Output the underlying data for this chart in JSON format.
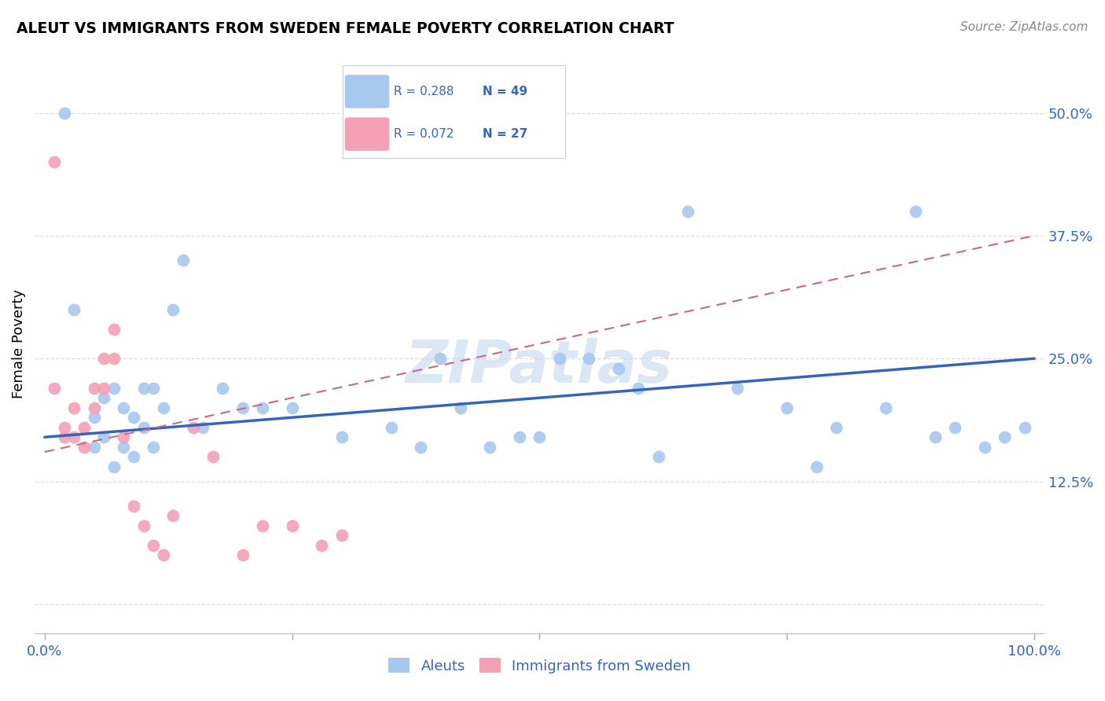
{
  "title": "ALEUT VS IMMIGRANTS FROM SWEDEN FEMALE POVERTY CORRELATION CHART",
  "source": "Source: ZipAtlas.com",
  "ylabel": "Female Poverty",
  "watermark": "ZIPatlas",
  "legend_blue_r": "R = 0.288",
  "legend_blue_n": "N = 49",
  "legend_pink_r": "R = 0.072",
  "legend_pink_n": "N = 27",
  "xlim": [
    -1,
    101
  ],
  "ylim": [
    -3,
    56
  ],
  "yticks": [
    0,
    12.5,
    25,
    37.5,
    50
  ],
  "xticks": [
    0,
    100
  ],
  "xtick_labels": [
    "0.0%",
    "100.0%"
  ],
  "ytick_labels": [
    "",
    "12.5%",
    "25.0%",
    "37.5%",
    "50.0%"
  ],
  "blue_color": "#A8C8F0",
  "pink_color": "#F4A0B5",
  "blue_line_color": "#3366BB",
  "pink_line_color": "#CC6688",
  "background_color": "#FFFFFF",
  "grid_color": "#DDDDDD",
  "blue_line_x": [
    0,
    100
  ],
  "blue_line_y": [
    17.0,
    25.0
  ],
  "pink_line_x": [
    0,
    100
  ],
  "pink_line_y": [
    15.5,
    37.5
  ],
  "blue_scatter_x": [
    2,
    3,
    5,
    5,
    6,
    6,
    7,
    7,
    8,
    8,
    9,
    9,
    10,
    10,
    11,
    11,
    12,
    13,
    14,
    16,
    18,
    20,
    22,
    25,
    30,
    35,
    38,
    40,
    42,
    45,
    48,
    50,
    52,
    55,
    58,
    60,
    62,
    65,
    70,
    75,
    78,
    80,
    85,
    88,
    90,
    92,
    95,
    97,
    99
  ],
  "blue_scatter_y": [
    50,
    30,
    19,
    16,
    21,
    17,
    22,
    14,
    20,
    16,
    19,
    15,
    22,
    18,
    22,
    16,
    20,
    30,
    35,
    18,
    22,
    20,
    20,
    20,
    17,
    18,
    16,
    25,
    20,
    16,
    17,
    17,
    25,
    25,
    24,
    22,
    15,
    40,
    22,
    20,
    14,
    18,
    20,
    40,
    17,
    18,
    16,
    17,
    18
  ],
  "pink_scatter_x": [
    1,
    1,
    2,
    2,
    3,
    3,
    4,
    4,
    5,
    5,
    6,
    6,
    7,
    7,
    8,
    9,
    10,
    11,
    12,
    13,
    15,
    17,
    20,
    22,
    25,
    28,
    30
  ],
  "pink_scatter_y": [
    45,
    22,
    18,
    17,
    20,
    17,
    18,
    16,
    22,
    20,
    25,
    22,
    28,
    25,
    17,
    10,
    8,
    6,
    5,
    9,
    18,
    15,
    5,
    8,
    8,
    6,
    7
  ]
}
